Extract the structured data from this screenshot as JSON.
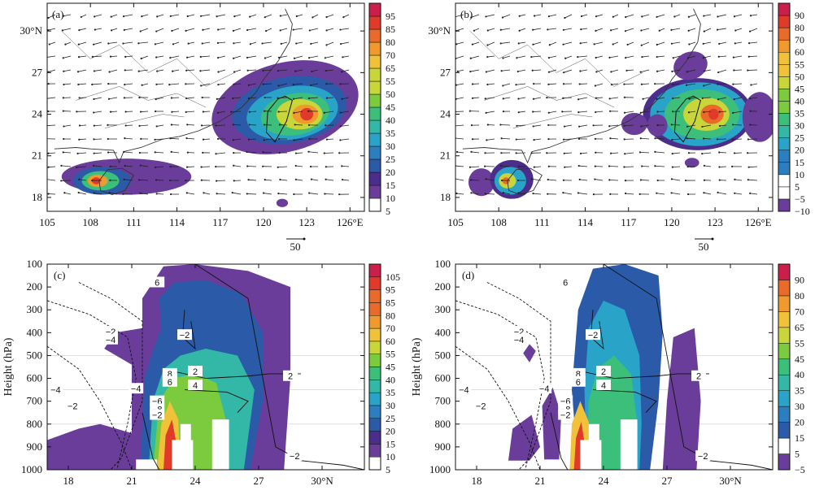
{
  "palette": {
    "c5": "#ffffff",
    "c10": "#6a3d9a",
    "c15": "#4b2e8c",
    "c20": "#2a5aa8",
    "c25": "#2b7fc0",
    "c30": "#2aa3c8",
    "c35": "#33b8a8",
    "c40": "#3cbf7a",
    "c45": "#7ccb3e",
    "c55": "#c9d63a",
    "c65": "#f0c23a",
    "c70": "#f09a2e",
    "c80": "#ea6a2a",
    "c90": "#e03a2a",
    "c95": "#cc1e4a"
  },
  "chart_data": [
    {
      "id": "a",
      "type": "heatmap",
      "panel_label": "(a)",
      "xticks": [
        "105",
        "108",
        "111",
        "114",
        "117",
        "120",
        "123",
        "126°E"
      ],
      "xtick_values": [
        105,
        108,
        111,
        114,
        117,
        120,
        123,
        126
      ],
      "yticks": [
        "18",
        "21",
        "24",
        "27",
        "30°N"
      ],
      "ytick_values": [
        18,
        21,
        24,
        27,
        30
      ],
      "xlim": [
        105,
        127
      ],
      "ylim": [
        17,
        32
      ],
      "colorbar": [
        "5",
        "10",
        "15",
        "20",
        "25",
        "30",
        "35",
        "40",
        "45",
        "50",
        "55",
        "65",
        "70",
        "80",
        "85",
        "95"
      ],
      "reference_vector_label": "50",
      "maxima": [
        {
          "lon": 123,
          "lat": 24,
          "value": 95
        },
        {
          "lon": 108.5,
          "lat": 19.2,
          "value": 90
        }
      ]
    },
    {
      "id": "b",
      "type": "heatmap",
      "panel_label": "(b)",
      "xticks": [
        "105",
        "108",
        "111",
        "114",
        "117",
        "120",
        "123",
        "126°E"
      ],
      "xtick_values": [
        105,
        108,
        111,
        114,
        117,
        120,
        123,
        126
      ],
      "yticks": [
        "18",
        "21",
        "24",
        "27",
        "30°N"
      ],
      "ytick_values": [
        18,
        21,
        24,
        27,
        30
      ],
      "xlim": [
        105,
        127
      ],
      "ylim": [
        17,
        32
      ],
      "colorbar": [
        "−10",
        "−5",
        "5",
        "10",
        "15",
        "20",
        "25",
        "30",
        "35",
        "40",
        "45",
        "50",
        "55",
        "60",
        "70",
        "80",
        "90"
      ],
      "reference_vector_label": "50"
    },
    {
      "id": "c",
      "type": "heatmap",
      "panel_label": "(c)",
      "ylabel": "Height (hPa)",
      "xticks": [
        "18",
        "21",
        "24",
        "27",
        "30°N"
      ],
      "xtick_values": [
        18,
        21,
        24,
        27,
        30
      ],
      "yticks": [
        "100",
        "200",
        "300",
        "400",
        "500",
        "600",
        "700",
        "800",
        "900",
        "1000"
      ],
      "ytick_values": [
        100,
        200,
        300,
        400,
        500,
        600,
        700,
        800,
        900,
        1000
      ],
      "xlim": [
        17,
        32
      ],
      "ylim": [
        1000,
        100
      ],
      "colorbar": [
        "5",
        "10",
        "15",
        "20",
        "25",
        "30",
        "35",
        "40",
        "45",
        "55",
        "60",
        "70",
        "80",
        "85",
        "95",
        "105"
      ],
      "contour_labels": [
        "6",
        "−2",
        "−4",
        "−2",
        "−4",
        "−2",
        "−2",
        "8",
        "6",
        "2",
        "4",
        "2",
        "−4",
        "−6",
        "−8",
        "−2"
      ]
    },
    {
      "id": "d",
      "type": "heatmap",
      "panel_label": "(d)",
      "ylabel": "Height (hPa)",
      "xticks": [
        "18",
        "21",
        "24",
        "27",
        "30°N"
      ],
      "xtick_values": [
        18,
        21,
        24,
        27,
        30
      ],
      "yticks": [
        "100",
        "200",
        "300",
        "400",
        "500",
        "600",
        "700",
        "800",
        "900",
        "1000"
      ],
      "ytick_values": [
        100,
        200,
        300,
        400,
        500,
        600,
        700,
        800,
        900,
        1000
      ],
      "xlim": [
        17,
        32
      ],
      "ylim": [
        1000,
        100
      ],
      "colorbar": [
        "−5",
        "5",
        "15",
        "20",
        "30",
        "35",
        "40",
        "45",
        "55",
        "65",
        "70",
        "80",
        "90"
      ],
      "contour_labels": [
        "6",
        "−2",
        "−4",
        "−2",
        "−4",
        "−2",
        "−2",
        "8",
        "6",
        "2",
        "4",
        "2",
        "−4",
        "−6",
        "−8",
        "−2"
      ]
    }
  ]
}
